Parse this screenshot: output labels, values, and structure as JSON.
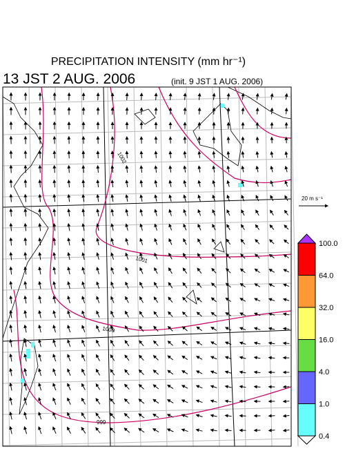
{
  "header": {
    "title": "PRECIPITATION INTENSITY (mm hr⁻¹)",
    "valid_time": "13 JST 2 AUG. 2006",
    "init_time": "(init. 9 JST 1 AUG. 2006)"
  },
  "map": {
    "contour_labels": [
      "1002",
      "1001",
      "1000",
      "999"
    ]
  },
  "wind_scale": {
    "label": "20 m s⁻¹"
  },
  "colorbar": {
    "labels": [
      "100.0",
      "64.0",
      "32.0",
      "16.0",
      "4.0",
      "1.0",
      "0.4"
    ],
    "colors": [
      "#ff0000",
      "#ff9933",
      "#ffff66",
      "#66dd44",
      "#6666ff",
      "#66ffff"
    ],
    "over_color": "#aa33ff",
    "under_color": "#ffffff"
  }
}
